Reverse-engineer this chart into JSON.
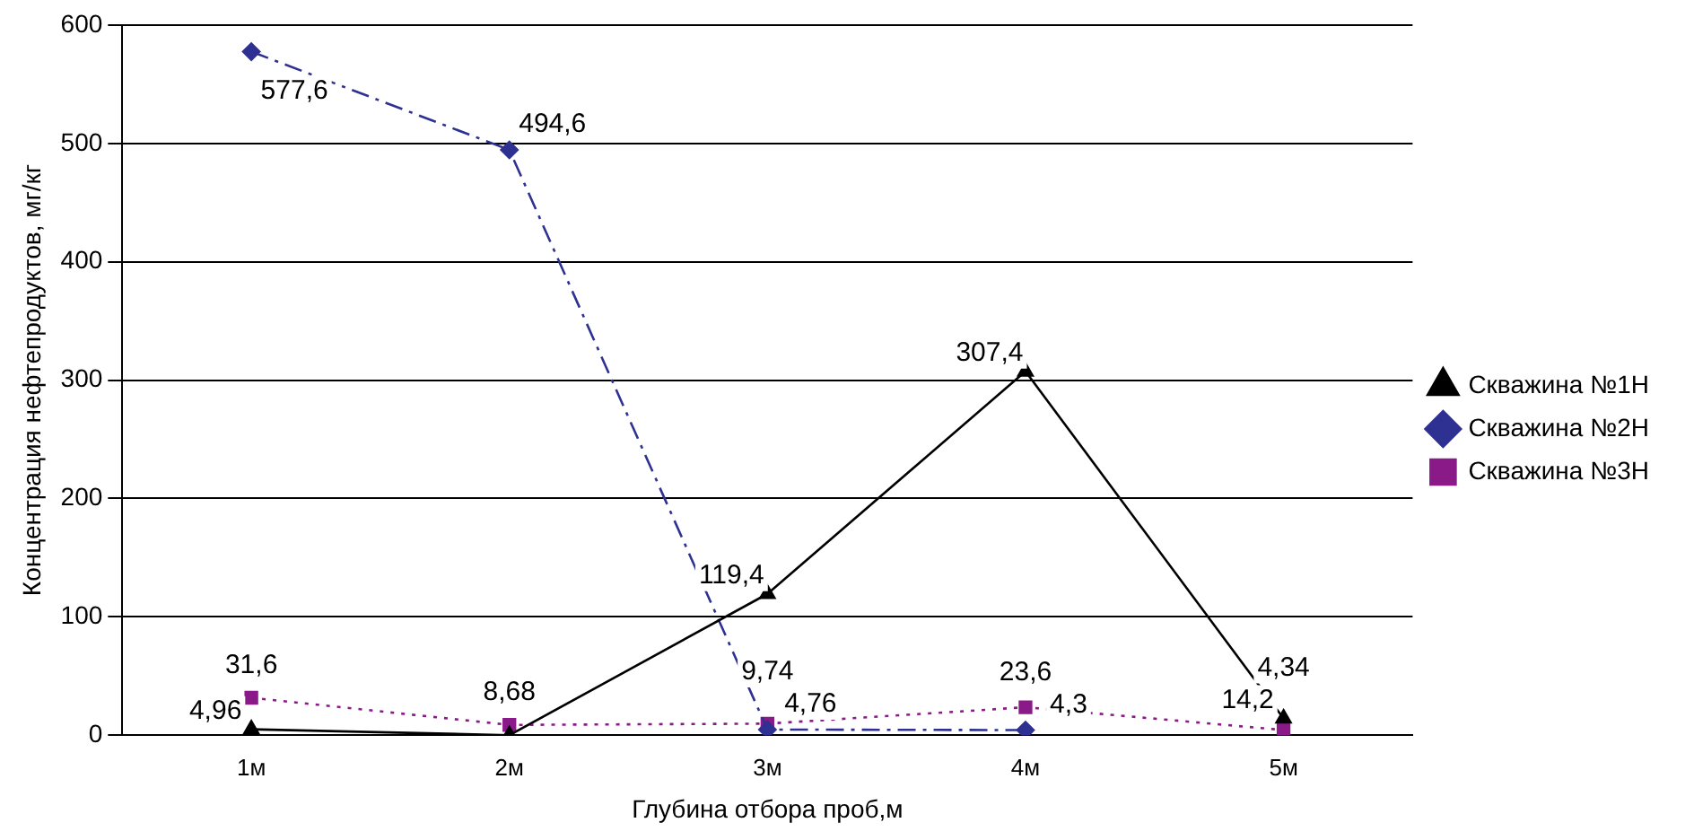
{
  "chart_data": {
    "type": "line",
    "xlabel": "Глубина отбора проб,м",
    "ylabel": "Концентрация нефтепродуктов, мг/кг",
    "categories": [
      "1м",
      "2м",
      "3м",
      "4м",
      "5м"
    ],
    "series": [
      {
        "name": "Скважина №1Н",
        "color": "#000000",
        "marker": "triangle",
        "line_style": "solid",
        "values": [
          4.96,
          0,
          119.4,
          307.4,
          14.2
        ],
        "value_labels": [
          "4,96",
          null,
          "119,4",
          "307,4",
          "14,2"
        ]
      },
      {
        "name": "Скважина №2Н",
        "color": "#2e3192",
        "marker": "diamond",
        "line_style": "dashed",
        "values": [
          577.6,
          494.6,
          4.76,
          4.3,
          null
        ],
        "value_labels": [
          "577,6",
          "494,6",
          "4,76",
          "4,3",
          null
        ]
      },
      {
        "name": "Скважина №3Н",
        "color": "#8b1a89",
        "marker": "square",
        "line_style": "dotted",
        "values": [
          31.6,
          8.68,
          9.74,
          23.6,
          4.34
        ],
        "value_labels": [
          "31,6",
          "8,68",
          "9,74",
          "23,6",
          "4,34"
        ]
      }
    ],
    "ylim": [
      0,
      600
    ],
    "yticks": [
      0,
      100,
      200,
      300,
      400,
      500,
      600
    ],
    "grid": "y",
    "legend": "right"
  }
}
